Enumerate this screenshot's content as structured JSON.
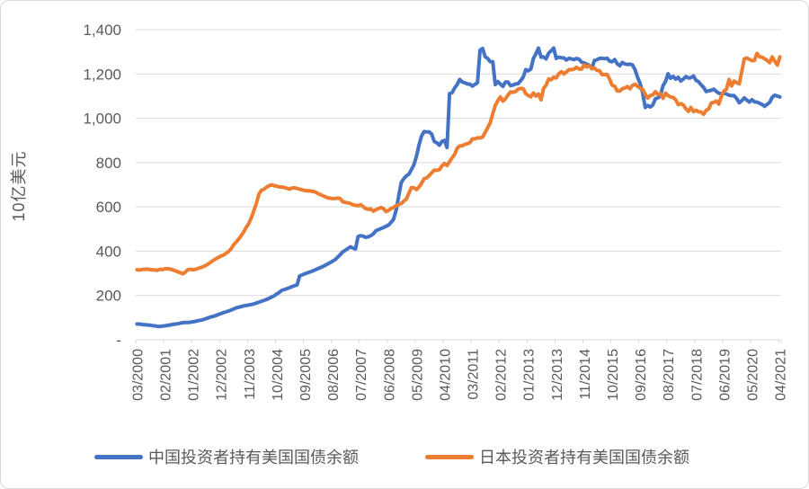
{
  "chart_data": {
    "type": "line",
    "title": "",
    "unit_note": "values in billions of USD (10亿美元)",
    "grid": true,
    "legend_position": "bottom",
    "colors": {
      "text": "#595959",
      "gridline": "#d9d9d9",
      "axis": "#d9d9d9",
      "background": "#ffffff",
      "border": "#d9d9d9"
    },
    "y_axis": {
      "title": "10亿美元",
      "min": 0,
      "max": 1400,
      "tick_values": [
        0,
        200,
        400,
        600,
        800,
        1000,
        1200,
        1400
      ],
      "tick_labels": [
        "-",
        "200",
        "400",
        "600",
        "800",
        "1,000",
        "1,200",
        "1,400"
      ]
    },
    "x_axis": {
      "frequency": "monthly",
      "start": "03/2000",
      "end": "04/2021",
      "months_total": 254,
      "label_every_n_months": 11,
      "tick_labels": [
        "03/2000",
        "02/2001",
        "01/2002",
        "12/2002",
        "11/2003",
        "10/2004",
        "09/2005",
        "08/2006",
        "07/2007",
        "06/2008",
        "05/2009",
        "04/2010",
        "03/2011",
        "02/2012",
        "01/2013",
        "12/2013",
        "11/2014",
        "10/2015",
        "09/2016",
        "08/2017",
        "07/2018",
        "06/2019",
        "05/2020",
        "04/2021"
      ]
    },
    "series": [
      {
        "name": "中国投资者持有美国国债余额",
        "color": "#4472C4",
        "values": [
          71,
          71,
          69,
          68,
          67,
          66,
          64,
          63,
          61,
          60,
          62,
          63,
          65,
          67,
          69,
          71,
          72,
          75,
          77,
          78,
          78,
          79,
          81,
          83,
          86,
          88,
          91,
          95,
          99,
          103,
          106,
          109,
          114,
          118,
          122,
          126,
          130,
          134,
          139,
          144,
          147,
          150,
          153,
          155,
          157,
          159,
          162,
          166,
          170,
          174,
          178,
          182,
          187,
          193,
          199,
          207,
          214,
          223,
          227,
          231,
          235,
          240,
          244,
          248,
          288,
          293,
          298,
          302,
          306,
          310,
          315,
          320,
          325,
          330,
          336,
          342,
          348,
          355,
          362,
          373,
          385,
          397,
          404,
          412,
          420,
          414,
          410,
          466,
          470,
          468,
          462,
          465,
          470,
          478,
          492,
          497,
          502,
          507,
          512,
          518,
          530,
          545,
          585,
          650,
          710,
          727,
          740,
          748,
          768,
          790,
          830,
          880,
          920,
          940,
          938,
          938,
          928,
          895,
          889,
          878,
          895,
          900,
          868,
          1112,
          1115,
          1137,
          1152,
          1175,
          1164,
          1160,
          1155,
          1154,
          1145,
          1153,
          1160,
          1307,
          1315,
          1278,
          1270,
          1256,
          1255,
          1152,
          1166,
          1155,
          1144,
          1164,
          1164,
          1147,
          1150,
          1155,
          1156,
          1170,
          1186,
          1220,
          1214,
          1223,
          1270,
          1291,
          1317,
          1276,
          1277,
          1268,
          1294,
          1305,
          1317,
          1270,
          1276,
          1273,
          1272,
          1263,
          1271,
          1268,
          1265,
          1270,
          1266,
          1253,
          1250,
          1244,
          1239,
          1224,
          1261,
          1264,
          1270,
          1271,
          1269,
          1271,
          1258,
          1255,
          1265,
          1246,
          1237,
          1252,
          1245,
          1243,
          1244,
          1241,
          1219,
          1185,
          1157,
          1116,
          1049,
          1058,
          1051,
          1060,
          1088,
          1092,
          1102,
          1147,
          1166,
          1201,
          1181,
          1189,
          1177,
          1185,
          1168,
          1177,
          1188,
          1182,
          1183,
          1191,
          1171,
          1165,
          1151,
          1139,
          1121,
          1124,
          1127,
          1131,
          1121,
          1113,
          1110,
          1113,
          1110,
          1104,
          1102,
          1102,
          1089,
          1070,
          1079,
          1092,
          1082,
          1073,
          1084,
          1074,
          1073,
          1068,
          1062,
          1054,
          1063,
          1072,
          1095,
          1104,
          1100,
          1096
        ]
      },
      {
        "name": "日本投资者持有美国国债余额",
        "color": "#ED7D31",
        "values": [
          316,
          315,
          317,
          318,
          319,
          317,
          316,
          315,
          314,
          318,
          317,
          320,
          321,
          319,
          316,
          312,
          307,
          303,
          298,
          305,
          316,
          318,
          316,
          318,
          322,
          326,
          330,
          335,
          342,
          350,
          358,
          365,
          372,
          378,
          382,
          390,
          398,
          410,
          428,
          441,
          455,
          470,
          487,
          508,
          525,
          551,
          583,
          617,
          658,
          675,
          680,
          689,
          696,
          699,
          696,
          693,
          690,
          690,
          687,
          684,
          680,
          685,
          686,
          683,
          680,
          677,
          674,
          673,
          673,
          670,
          668,
          662,
          656,
          651,
          646,
          641,
          639,
          637,
          638,
          640,
          637,
          623,
          620,
          618,
          615,
          610,
          607,
          605,
          610,
          601,
          592,
          589,
          591,
          581,
          587,
          592,
          597,
          592,
          579,
          584,
          593,
          597,
          605,
          610,
          615,
          626,
          635,
          662,
          687,
          686,
          678,
          690,
          707,
          727,
          731,
          742,
          754,
          766,
          765,
          768,
          785,
          796,
          787,
          804,
          821,
          837,
          865,
          875,
          876,
          882,
          886,
          890,
          907,
          907,
          912,
          911,
          915,
          936,
          957,
          979,
          1020,
          1058,
          1079,
          1096,
          1077,
          1088,
          1105,
          1119,
          1117,
          1121,
          1131,
          1135,
          1133,
          1111,
          1103,
          1097,
          1114,
          1100,
          1110,
          1083,
          1135,
          1149,
          1178,
          1174,
          1186,
          1182,
          1201,
          1210,
          1200,
          1209,
          1220,
          1219,
          1222,
          1230,
          1222,
          1222,
          1241,
          1231,
          1238,
          1224,
          1227,
          1216,
          1215,
          1197,
          1197,
          1198,
          1177,
          1149,
          1145,
          1123,
          1123,
          1133,
          1137,
          1143,
          1133,
          1148,
          1154,
          1144,
          1136,
          1131,
          1108,
          1091,
          1103,
          1105,
          1120,
          1107,
          1111,
          1090,
          1113,
          1102,
          1096,
          1094,
          1084,
          1061,
          1066,
          1060,
          1043,
          1031,
          1049,
          1030,
          1036,
          1030,
          1028,
          1018,
          1036,
          1042,
          1069,
          1072,
          1078,
          1064,
          1101,
          1123,
          1131,
          1175,
          1146,
          1168,
          1161,
          1155,
          1211,
          1268,
          1272,
          1266,
          1260,
          1261,
          1293,
          1278,
          1276,
          1269,
          1261,
          1251,
          1277,
          1258,
          1240,
          1277
        ]
      }
    ]
  }
}
